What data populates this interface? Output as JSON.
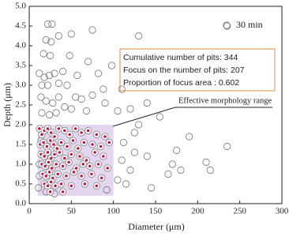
{
  "chart_data": {
    "type": "scatter",
    "x_label": "Diameter (μm)",
    "y_label": "Depth (μm)",
    "xlim": [
      0,
      300
    ],
    "ylim": [
      0,
      5
    ],
    "xticks": [
      0,
      50,
      100,
      150,
      200,
      250,
      300
    ],
    "yticks": [
      {
        "value": 0,
        "label": "0.0"
      },
      {
        "value": 0.5,
        "label": "0.5"
      },
      {
        "value": 1,
        "label": "1.0"
      },
      {
        "value": 1.5,
        "label": "1.5"
      },
      {
        "value": 2,
        "label": "2.0"
      },
      {
        "value": 2.5,
        "label": "2.5"
      },
      {
        "value": 3,
        "label": "3.0"
      },
      {
        "value": 3.5,
        "label": "3.5"
      },
      {
        "value": 4,
        "label": "4.0"
      },
      {
        "value": 4.5,
        "label": "4.5"
      },
      {
        "value": 5,
        "label": "5.0"
      }
    ],
    "legend": "top-right",
    "annotations": [
      "Cumulative number of pits: 344",
      "Focus on the number of pits: 207",
      "Proportion of focus area : 0.602"
    ],
    "range_label": "Effective morphology range",
    "focus_region": {
      "x": [
        10,
        100
      ],
      "y": [
        0.2,
        2.0
      ],
      "color": "#e3d6ee"
    },
    "series": [
      {
        "name": "30 min",
        "color": "#777777",
        "x": [
          22,
          27,
          20,
          26,
          35,
          50,
          75,
          130,
          235,
          17,
          25,
          48,
          12,
          18,
          24,
          30,
          40,
          15,
          22,
          35,
          45,
          70,
          82,
          98,
          57,
          88,
          55,
          62,
          75,
          90,
          110,
          14,
          20,
          28,
          35,
          42,
          15,
          24,
          32,
          50,
          68,
          105,
          120,
          140,
          155,
          130,
          125,
          112,
          175,
          190,
          235,
          170,
          180,
          210,
          215,
          125,
          110,
          120,
          105,
          115,
          30,
          20,
          92,
          145,
          12,
          12,
          14,
          11,
          140,
          165
        ],
        "values": [
          4.55,
          4.55,
          4.15,
          4.1,
          4.25,
          4.3,
          4.4,
          4.25,
          4.5,
          3.8,
          3.75,
          3.75,
          3.3,
          3.2,
          3.25,
          3.3,
          3.35,
          3.0,
          3.0,
          3.05,
          3.0,
          3.6,
          3.3,
          3.5,
          3.25,
          2.9,
          2.7,
          2.65,
          2.75,
          2.55,
          2.9,
          2.7,
          2.6,
          2.55,
          2.7,
          2.45,
          2.3,
          2.25,
          2.3,
          2.4,
          2.35,
          2.35,
          2.4,
          2.55,
          2.2,
          2.0,
          1.8,
          1.55,
          1.35,
          1.7,
          1.45,
          1.0,
          0.85,
          1.05,
          0.85,
          1.3,
          1.1,
          0.85,
          0.6,
          0.5,
          0.25,
          0.3,
          0.35,
          0.4,
          1.0,
          0.7,
          1.6,
          0.4,
          1.2,
          0.75
        ]
      },
      {
        "color": "#c0144a",
        "x": [
          12,
          15,
          18,
          22,
          26,
          30,
          35,
          42,
          48,
          55,
          62,
          70,
          80,
          90,
          13,
          17,
          21,
          25,
          29,
          33,
          38,
          45,
          52,
          58,
          65,
          75,
          85,
          95,
          14,
          18,
          22,
          26,
          30,
          36,
          42,
          50,
          60,
          68,
          78,
          88,
          15,
          19,
          23,
          27,
          32,
          40,
          47,
          56,
          64,
          72,
          82,
          93,
          16,
          20,
          24,
          28,
          34,
          44,
          53,
          62,
          74,
          86,
          18,
          22,
          26,
          31,
          38,
          50,
          66,
          80,
          25,
          40
        ],
        "values": [
          1.9,
          1.75,
          1.85,
          1.9,
          1.8,
          1.7,
          1.9,
          1.85,
          1.75,
          1.9,
          1.8,
          1.85,
          1.75,
          1.7,
          1.5,
          1.55,
          1.45,
          1.6,
          1.5,
          1.4,
          1.55,
          1.45,
          1.6,
          1.4,
          1.55,
          1.5,
          1.45,
          1.55,
          1.25,
          1.2,
          1.3,
          1.15,
          1.25,
          1.3,
          1.15,
          1.25,
          1.2,
          1.1,
          1.3,
          1.2,
          1.0,
          0.95,
          1.05,
          0.9,
          1.0,
          0.95,
          1.05,
          0.9,
          1.0,
          0.95,
          1.0,
          0.9,
          0.75,
          0.7,
          0.8,
          0.65,
          0.75,
          0.7,
          0.8,
          0.7,
          0.75,
          0.65,
          0.5,
          0.45,
          0.55,
          0.45,
          0.5,
          0.45,
          0.5,
          0.45,
          0.3,
          0.3
        ]
      }
    ]
  }
}
